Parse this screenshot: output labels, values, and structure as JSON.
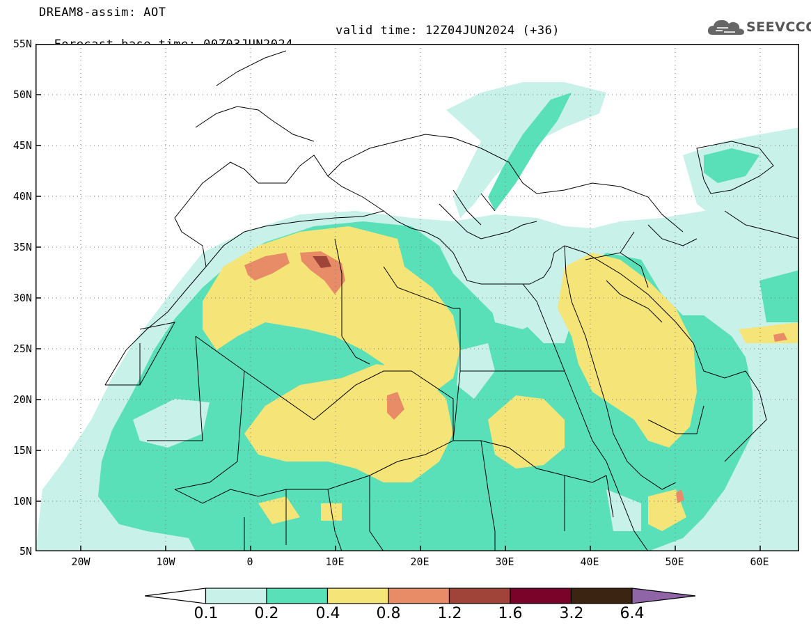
{
  "header": {
    "title_line1": "DREAM8-assim: AOT",
    "title_line2_base": "Forecast base time: 00Z03JUN2024",
    "title_line2_valid": "valid time: 12Z04JUN2024 (+36)"
  },
  "logo": {
    "text": "SEEVCCC",
    "icon": "cloud-icon"
  },
  "map": {
    "projection": "lat-lon",
    "lon_range": [
      -25,
      65
    ],
    "lat_range": [
      5,
      55
    ],
    "lat_labels": [
      "55N",
      "50N",
      "45N",
      "40N",
      "35N",
      "30N",
      "25N",
      "20N",
      "15N",
      "10N",
      "5N"
    ],
    "lon_labels": [
      "20W",
      "10W",
      "0",
      "10E",
      "20E",
      "30E",
      "40E",
      "50E",
      "60E"
    ],
    "grid": "dotted"
  },
  "legend": {
    "colors": [
      "#ffffff",
      "#c8f1ea",
      "#5ae0b8",
      "#f5e477",
      "#e88c68",
      "#a0443a",
      "#7a0329",
      "#3b2412",
      "#8f65a8"
    ],
    "labels": [
      "0.1",
      "0.2",
      "0.4",
      "0.8",
      "1.2",
      "1.6",
      "3.2",
      "6.4"
    ]
  }
}
